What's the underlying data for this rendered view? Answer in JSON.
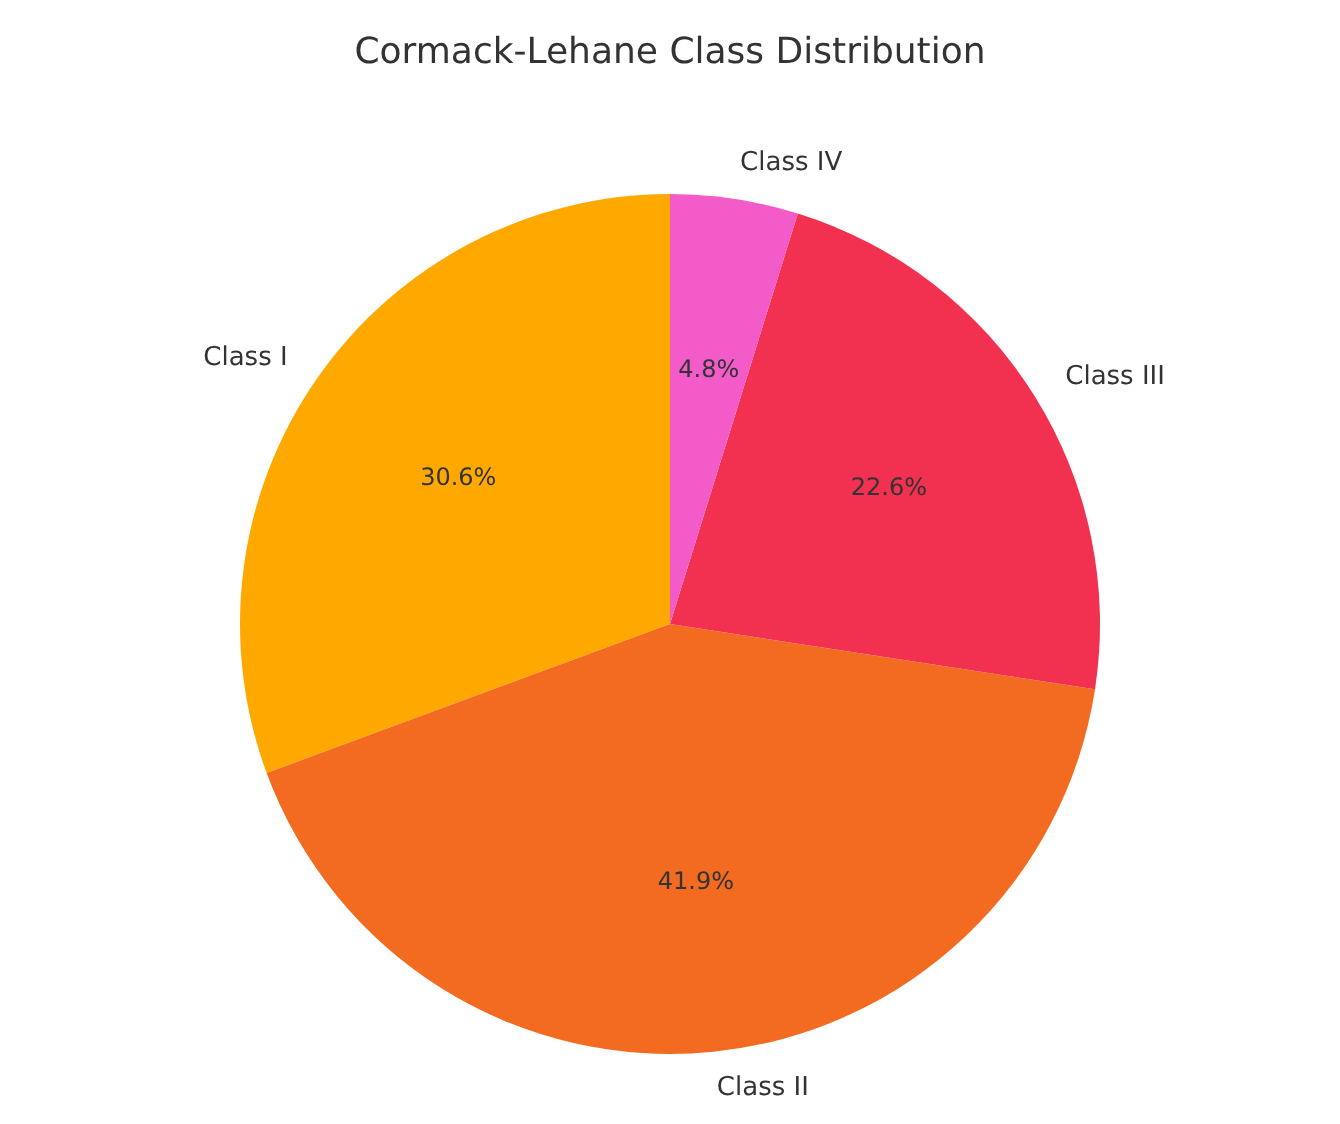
{
  "chart_data": {
    "type": "pie",
    "title": "Cormack-Lehane Class Distribution",
    "categories": [
      "Class I",
      "Class II",
      "Class III",
      "Class IV"
    ],
    "values": [
      30.6,
      41.9,
      22.6,
      4.8
    ],
    "value_labels": [
      "30.6%",
      "41.9%",
      "22.6%",
      "4.8%"
    ],
    "colors": [
      "#ffa800",
      "#f26b21",
      "#f2304f",
      "#f25bc8"
    ]
  }
}
